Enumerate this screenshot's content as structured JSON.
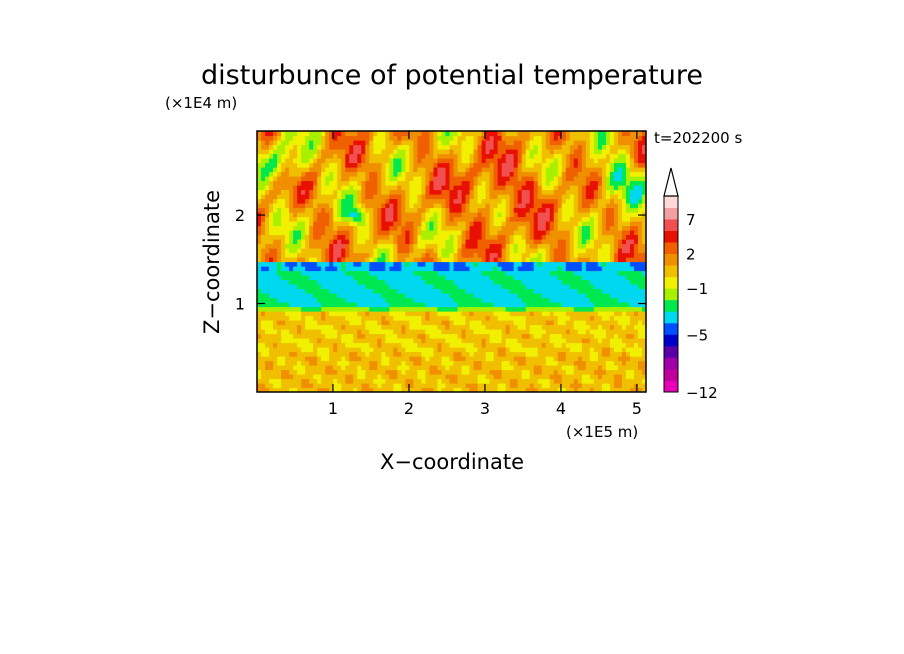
{
  "chart_data": {
    "type": "heatmap",
    "title": "disturbunce of potential temperature",
    "xlabel": "X−coordinate",
    "ylabel": "Z−coordinate",
    "x_scale_label": "(×1E5 m)",
    "y_scale_label": "(×1E4 m)",
    "time_label": "t=202200 s",
    "xlim": [
      0,
      5.12
    ],
    "ylim": [
      0,
      2.95
    ],
    "x_ticks": [
      1,
      2,
      3,
      4,
      5
    ],
    "y_ticks": [
      1,
      2
    ],
    "x_tick_labels": [
      "1",
      "2",
      "3",
      "4",
      "5"
    ],
    "y_tick_labels": [
      "1",
      "2"
    ],
    "colorbar": {
      "colors": [
        "#e800b8",
        "#c0009c",
        "#a000a8",
        "#5a00a8",
        "#0000c8",
        "#0050ff",
        "#00d8f0",
        "#00e850",
        "#a8f000",
        "#f0f000",
        "#f0c000",
        "#f09000",
        "#f06000",
        "#e81000",
        "#f05050",
        "#f0a0a0",
        "#ffd8d8"
      ],
      "tick_labels": [
        "−12",
        "−5",
        "−1",
        "2",
        "7"
      ],
      "tick_levels": [
        0,
        5,
        9,
        12,
        15
      ],
      "extend": "max"
    }
  }
}
